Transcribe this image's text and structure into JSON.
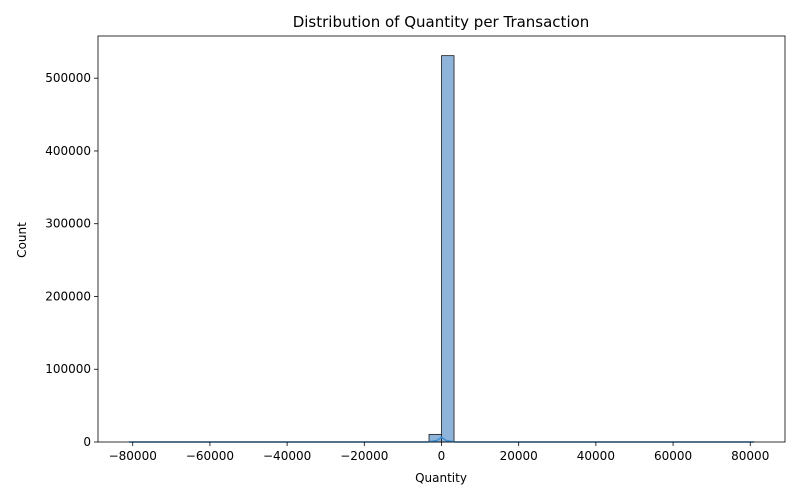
{
  "chart_data": {
    "type": "bar",
    "title": "Distribution of Quantity per Transaction",
    "xlabel": "Quantity",
    "ylabel": "Count",
    "xlim": [
      -89000,
      89000
    ],
    "ylim": [
      0,
      558000
    ],
    "x_ticks": [
      -80000,
      -60000,
      -40000,
      -20000,
      0,
      20000,
      40000,
      60000,
      80000
    ],
    "x_tick_labels": [
      "−80000",
      "−60000",
      "−40000",
      "−20000",
      "0",
      "20000",
      "40000",
      "60000",
      "80000"
    ],
    "y_ticks": [
      0,
      100000,
      200000,
      300000,
      400000,
      500000
    ],
    "y_tick_labels": [
      "0",
      "100000",
      "200000",
      "300000",
      "400000",
      "500000"
    ],
    "bin_start": -80995,
    "bin_width": 3239.8,
    "bins": [
      {
        "x": -3236,
        "count": 10500
      },
      {
        "x": 3.8,
        "count": 531000
      }
    ],
    "kde": [
      {
        "x": -80995,
        "y": 0
      },
      {
        "x": -3500,
        "y": 0
      },
      {
        "x": -1200,
        "y": 2000
      },
      {
        "x": 0,
        "y": 6500
      },
      {
        "x": 1200,
        "y": 2000
      },
      {
        "x": 3500,
        "y": 0
      },
      {
        "x": 80995,
        "y": 0
      }
    ],
    "grid": false,
    "legend": "none",
    "colors": {
      "bar_fill": "#8fb4d9",
      "bar_edge": "#1a1a1a",
      "kde_line": "#3b8fd6"
    }
  }
}
